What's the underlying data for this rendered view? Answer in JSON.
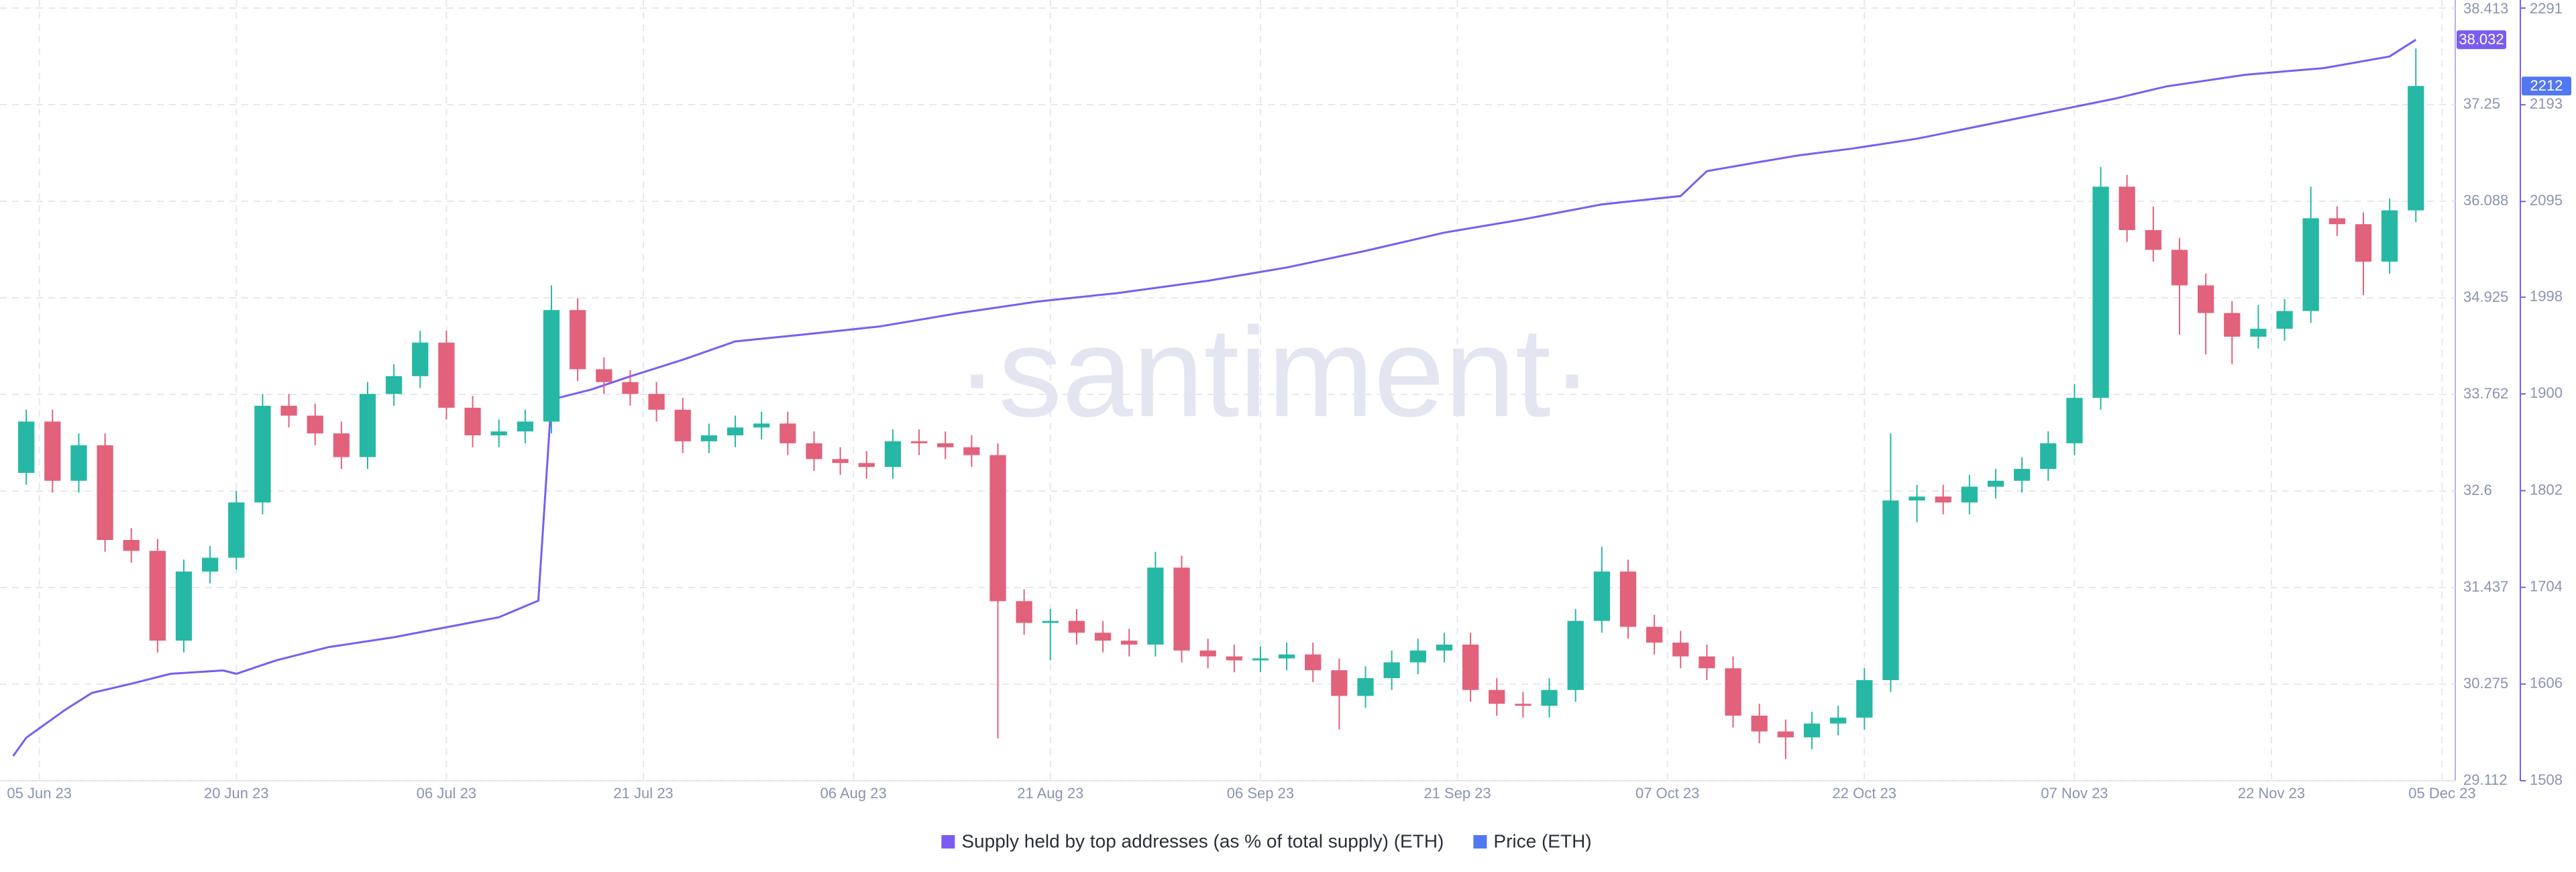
{
  "chart_data": {
    "type": "candlestick",
    "watermark": "·santiment·",
    "xlim": [
      "2023-06-02",
      "2023-12-06"
    ],
    "xticks": [
      {
        "value": "2023-06-05",
        "label": "05 Jun 23"
      },
      {
        "value": "2023-06-20",
        "label": "20 Jun 23"
      },
      {
        "value": "2023-07-06",
        "label": "06 Jul 23"
      },
      {
        "value": "2023-07-21",
        "label": "21 Jul 23"
      },
      {
        "value": "2023-08-06",
        "label": "06 Aug 23"
      },
      {
        "value": "2023-08-21",
        "label": "21 Aug 23"
      },
      {
        "value": "2023-09-06",
        "label": "06 Sep 23"
      },
      {
        "value": "2023-09-21",
        "label": "21 Sep 23"
      },
      {
        "value": "2023-10-07",
        "label": "07 Oct 23"
      },
      {
        "value": "2023-10-22",
        "label": "22 Oct 23"
      },
      {
        "value": "2023-11-07",
        "label": "07 Nov 23"
      },
      {
        "value": "2023-11-22",
        "label": "22 Nov 23"
      },
      {
        "value": "2023-12-05",
        "label": "05 Dec 23"
      }
    ],
    "ylim": [
      29.112,
      38.413
    ],
    "yticks": [
      29.112,
      30.275,
      31.437,
      32.6,
      33.762,
      34.925,
      36.088,
      37.25,
      38.413
    ],
    "y2lim": [
      1508,
      2291
    ],
    "y2ticks": [
      1508,
      1606,
      1704,
      1802,
      1900,
      1998,
      2095,
      2193,
      2291
    ],
    "grid": true,
    "legend": "bottom",
    "series": [
      {
        "name": "Supply held by top addresses (as % of total supply) (ETH)",
        "type": "line",
        "axis": "y",
        "color": "#7b5cf2",
        "last_value_label": "38.032",
        "x": [
          "2023-06-03",
          "2023-06-04",
          "2023-06-07",
          "2023-06-09",
          "2023-06-12",
          "2023-06-15",
          "2023-06-19",
          "2023-06-20",
          "2023-06-23",
          "2023-06-27",
          "2023-07-02",
          "2023-07-06",
          "2023-07-10",
          "2023-07-13",
          "2023-07-14",
          "2023-07-17",
          "2023-07-20",
          "2023-07-24",
          "2023-07-28",
          "2023-08-02",
          "2023-08-08",
          "2023-08-14",
          "2023-08-20",
          "2023-08-26",
          "2023-09-02",
          "2023-09-08",
          "2023-09-14",
          "2023-09-20",
          "2023-09-26",
          "2023-10-02",
          "2023-10-08",
          "2023-10-10",
          "2023-10-14",
          "2023-10-17",
          "2023-10-21",
          "2023-10-26",
          "2023-10-31",
          "2023-11-05",
          "2023-11-10",
          "2023-11-14",
          "2023-11-20",
          "2023-11-26",
          "2023-12-01",
          "2023-12-03"
        ],
        "values": [
          29.41,
          29.63,
          29.97,
          30.17,
          30.28,
          30.4,
          30.44,
          30.4,
          30.56,
          30.72,
          30.84,
          30.96,
          31.08,
          31.28,
          33.7,
          33.82,
          33.98,
          34.18,
          34.4,
          34.48,
          34.58,
          34.74,
          34.88,
          34.98,
          35.13,
          35.29,
          35.49,
          35.71,
          35.87,
          36.05,
          36.15,
          36.45,
          36.56,
          36.64,
          36.72,
          36.84,
          37.0,
          37.16,
          37.32,
          37.47,
          37.61,
          37.69,
          37.83,
          38.032
        ]
      },
      {
        "name": "Price (ETH)",
        "type": "candlestick",
        "axis": "y2",
        "color": "#5177f2",
        "up_color": "#26b8a4",
        "down_color": "#e2617b",
        "last_value_label": "2212",
        "x": [
          "2023-06-04",
          "2023-06-06",
          "2023-06-08",
          "2023-06-10",
          "2023-06-12",
          "2023-06-14",
          "2023-06-16",
          "2023-06-18",
          "2023-06-20",
          "2023-06-22",
          "2023-06-24",
          "2023-06-26",
          "2023-06-28",
          "2023-06-30",
          "2023-07-02",
          "2023-07-04",
          "2023-07-06",
          "2023-07-08",
          "2023-07-10",
          "2023-07-12",
          "2023-07-14",
          "2023-07-16",
          "2023-07-18",
          "2023-07-20",
          "2023-07-22",
          "2023-07-24",
          "2023-07-26",
          "2023-07-28",
          "2023-07-30",
          "2023-08-01",
          "2023-08-03",
          "2023-08-05",
          "2023-08-07",
          "2023-08-09",
          "2023-08-11",
          "2023-08-13",
          "2023-08-15",
          "2023-08-17",
          "2023-08-19",
          "2023-08-21",
          "2023-08-23",
          "2023-08-25",
          "2023-08-27",
          "2023-08-29",
          "2023-08-31",
          "2023-09-02",
          "2023-09-04",
          "2023-09-06",
          "2023-09-08",
          "2023-09-10",
          "2023-09-12",
          "2023-09-14",
          "2023-09-16",
          "2023-09-18",
          "2023-09-20",
          "2023-09-22",
          "2023-09-24",
          "2023-09-26",
          "2023-09-28",
          "2023-09-30",
          "2023-10-02",
          "2023-10-04",
          "2023-10-06",
          "2023-10-08",
          "2023-10-10",
          "2023-10-12",
          "2023-10-14",
          "2023-10-16",
          "2023-10-18",
          "2023-10-20",
          "2023-10-22",
          "2023-10-24",
          "2023-10-26",
          "2023-10-28",
          "2023-10-30",
          "2023-11-01",
          "2023-11-03",
          "2023-11-05",
          "2023-11-07",
          "2023-11-09",
          "2023-11-11",
          "2023-11-13",
          "2023-11-15",
          "2023-11-17",
          "2023-11-19",
          "2023-11-21",
          "2023-11-23",
          "2023-11-25",
          "2023-11-27",
          "2023-11-29",
          "2023-12-01",
          "2023-12-03"
        ],
        "open": [
          1820,
          1872,
          1812,
          1848,
          1752,
          1741,
          1650,
          1720,
          1734,
          1790,
          1888,
          1878,
          1860,
          1836,
          1900,
          1918,
          1952,
          1886,
          1858,
          1862,
          1872,
          1985,
          1925,
          1912,
          1900,
          1884,
          1852,
          1858,
          1866,
          1870,
          1850,
          1834,
          1830,
          1826,
          1852,
          1850,
          1846,
          1838,
          1690,
          1668,
          1670,
          1658,
          1650,
          1646,
          1724,
          1640,
          1634,
          1630,
          1632,
          1636,
          1620,
          1594,
          1612,
          1628,
          1640,
          1646,
          1600,
          1586,
          1584,
          1600,
          1670,
          1720,
          1664,
          1648,
          1634,
          1622,
          1574,
          1558,
          1552,
          1566,
          1572,
          1610,
          1792,
          1796,
          1790,
          1806,
          1812,
          1824,
          1850,
          1896,
          2110,
          2066,
          2046,
          2010,
          1982,
          1958,
          1966,
          1984,
          2078,
          2072,
          2034,
          2086
        ],
        "high": [
          1884,
          1884,
          1860,
          1860,
          1764,
          1753,
          1732,
          1746,
          1802,
          1900,
          1900,
          1890,
          1872,
          1912,
          1930,
          1964,
          1964,
          1898,
          1874,
          1884,
          2010,
          1997,
          1937,
          1924,
          1912,
          1896,
          1870,
          1878,
          1882,
          1882,
          1862,
          1846,
          1842,
          1864,
          1864,
          1862,
          1858,
          1850,
          1702,
          1682,
          1682,
          1670,
          1662,
          1740,
          1736,
          1652,
          1646,
          1644,
          1648,
          1648,
          1632,
          1624,
          1640,
          1652,
          1658,
          1658,
          1612,
          1598,
          1612,
          1682,
          1745,
          1732,
          1676,
          1660,
          1646,
          1634,
          1586,
          1570,
          1578,
          1584,
          1622,
          1860,
          1808,
          1808,
          1818,
          1824,
          1836,
          1862,
          1910,
          2130,
          2122,
          2090,
          2058,
          2022,
          1994,
          1990,
          1996,
          2110,
          2090,
          2084,
          2098,
          2250
        ],
        "low": [
          1808,
          1800,
          1800,
          1740,
          1729,
          1638,
          1638,
          1708,
          1722,
          1778,
          1866,
          1848,
          1824,
          1824,
          1888,
          1906,
          1874,
          1846,
          1846,
          1850,
          1860,
          1913,
          1900,
          1888,
          1872,
          1840,
          1840,
          1846,
          1854,
          1838,
          1822,
          1818,
          1814,
          1814,
          1838,
          1834,
          1826,
          1551,
          1656,
          1630,
          1646,
          1638,
          1634,
          1634,
          1628,
          1622,
          1618,
          1618,
          1620,
          1608,
          1560,
          1582,
          1600,
          1616,
          1628,
          1588,
          1574,
          1572,
          1572,
          1588,
          1658,
          1652,
          1636,
          1622,
          1610,
          1562,
          1546,
          1530,
          1540,
          1554,
          1560,
          1598,
          1770,
          1778,
          1778,
          1794,
          1800,
          1812,
          1838,
          1884,
          2054,
          2034,
          1960,
          1940,
          1930,
          1946,
          1954,
          1972,
          2060,
          2000,
          2022,
          2074
        ],
        "close": [
          1872,
          1812,
          1848,
          1752,
          1741,
          1650,
          1720,
          1734,
          1790,
          1888,
          1878,
          1860,
          1836,
          1900,
          1918,
          1952,
          1886,
          1858,
          1862,
          1872,
          1985,
          1925,
          1912,
          1900,
          1884,
          1852,
          1858,
          1866,
          1870,
          1850,
          1834,
          1830,
          1826,
          1852,
          1850,
          1846,
          1838,
          1690,
          1668,
          1670,
          1658,
          1650,
          1646,
          1724,
          1640,
          1634,
          1630,
          1632,
          1636,
          1620,
          1594,
          1612,
          1628,
          1640,
          1646,
          1600,
          1586,
          1584,
          1600,
          1670,
          1720,
          1664,
          1648,
          1634,
          1622,
          1574,
          1558,
          1552,
          1566,
          1572,
          1610,
          1792,
          1796,
          1790,
          1806,
          1812,
          1824,
          1850,
          1896,
          2110,
          2066,
          2046,
          2010,
          1982,
          1958,
          1966,
          1984,
          2078,
          2072,
          2034,
          2086,
          2212
        ]
      }
    ]
  }
}
